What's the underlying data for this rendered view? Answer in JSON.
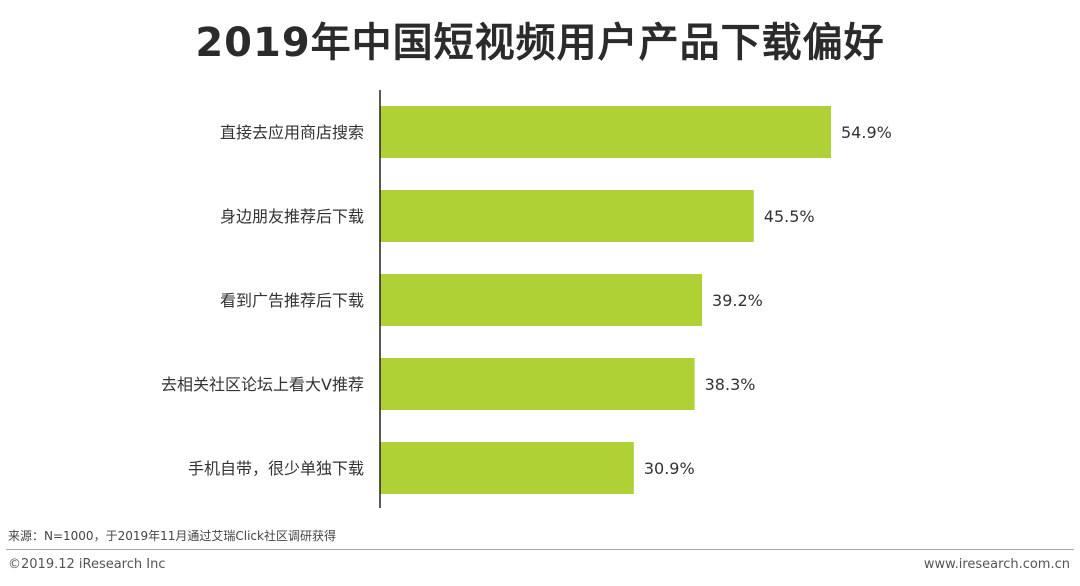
{
  "chart_data": {
    "type": "bar",
    "orientation": "horizontal",
    "title": "2019年中国短视频用户产品下载偏好",
    "categories": [
      "直接去应用商店搜索",
      "身边朋友推荐后下载",
      "看到广告推荐后下载",
      "去相关社区论坛上看大V推荐",
      "手机自带，很少单独下载"
    ],
    "values": [
      54.9,
      45.5,
      39.2,
      38.3,
      30.9
    ],
    "value_labels": [
      "54.9%",
      "45.5%",
      "39.2%",
      "38.3%",
      "30.9%"
    ],
    "xlim": [
      0,
      60
    ],
    "grid": false,
    "bar_color": "#afd136"
  },
  "footer": {
    "source": "来源：N=1000，于2019年11月通过艾瑞Click社区调研获得",
    "copyright": "©2019.12 iResearch Inc",
    "website": "www.iresearch.com.cn"
  }
}
